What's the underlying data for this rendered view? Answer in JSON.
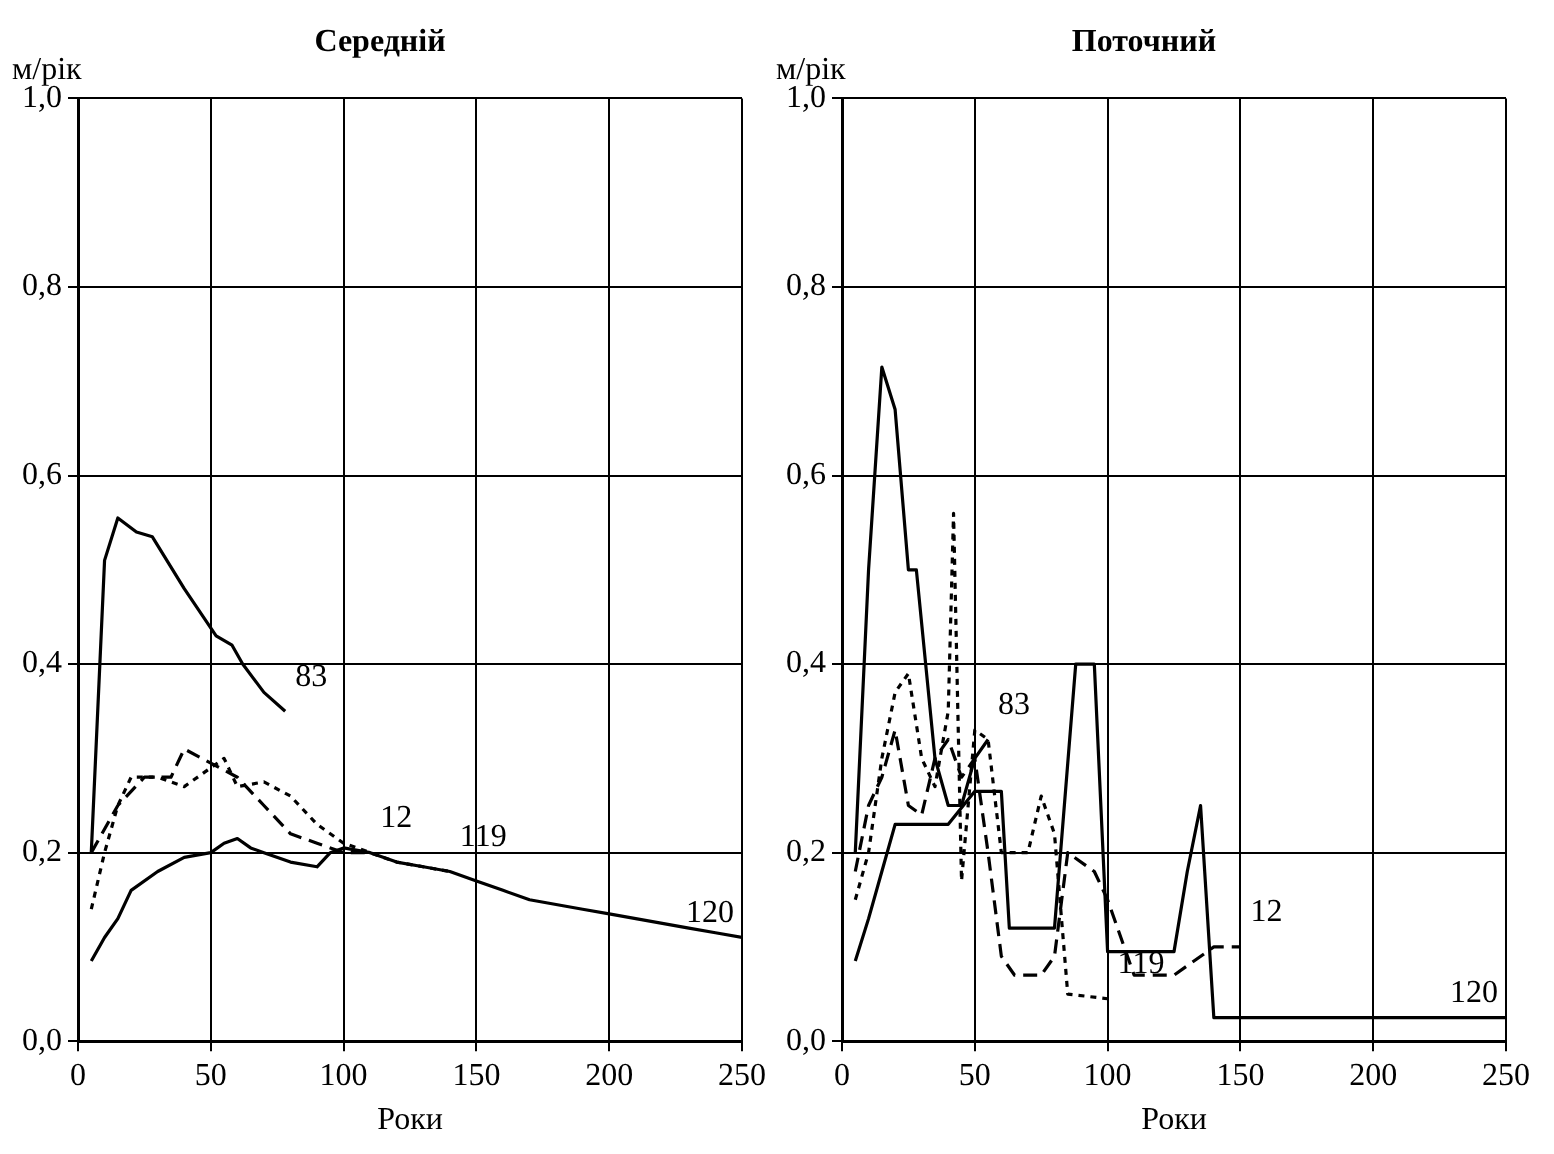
{
  "chart_data": [
    {
      "type": "line",
      "title": "Середній",
      "ylabel": "м/рік",
      "xlabel": "Роки",
      "xlim": [
        0,
        250
      ],
      "xticks": [
        0,
        50,
        100,
        150,
        200,
        250
      ],
      "ylim": [
        0,
        1
      ],
      "yticks": [
        {
          "value": 0,
          "label": "0,0"
        },
        {
          "value": 0.2,
          "label": "0,2"
        },
        {
          "value": 0.4,
          "label": "0,4"
        },
        {
          "value": 0.6,
          "label": "0,6"
        },
        {
          "value": 0.8,
          "label": "0,8"
        },
        {
          "value": 1,
          "label": "1,0"
        }
      ],
      "grid": true,
      "legend": false,
      "marker": "none",
      "series": [
        {
          "name": "83",
          "color": "#000000",
          "line_style": "solid",
          "x": [
            5,
            10,
            15,
            22,
            28,
            40,
            52,
            58,
            62,
            70,
            78
          ],
          "values": [
            0.2,
            0.51,
            0.555,
            0.54,
            0.535,
            0.48,
            0.43,
            0.42,
            0.4,
            0.37,
            0.35
          ]
        },
        {
          "name": "12",
          "color": "#000000",
          "line_style": "dashed",
          "x": [
            5,
            15,
            25,
            35,
            40,
            50,
            60,
            70,
            80,
            90,
            100,
            110
          ],
          "values": [
            0.2,
            0.25,
            0.28,
            0.28,
            0.31,
            0.295,
            0.28,
            0.25,
            0.22,
            0.21,
            0.2,
            0.2
          ]
        },
        {
          "name": "119",
          "color": "#000000",
          "line_style": "dotted",
          "x": [
            5,
            10,
            15,
            20,
            30,
            40,
            50,
            55,
            60,
            70,
            80,
            90,
            100,
            120,
            140
          ],
          "values": [
            0.14,
            0.2,
            0.25,
            0.28,
            0.28,
            0.27,
            0.29,
            0.3,
            0.27,
            0.275,
            0.26,
            0.23,
            0.21,
            0.19,
            0.18
          ]
        },
        {
          "name": "120",
          "color": "#000000",
          "line_style": "solid",
          "x": [
            5,
            10,
            15,
            20,
            30,
            40,
            50,
            55,
            60,
            65,
            70,
            80,
            90,
            95,
            100,
            110,
            120,
            130,
            140,
            150,
            160,
            170,
            180,
            190,
            200,
            210,
            220,
            230,
            240,
            250
          ],
          "values": [
            0.085,
            0.11,
            0.13,
            0.16,
            0.18,
            0.195,
            0.2,
            0.21,
            0.215,
            0.205,
            0.2,
            0.19,
            0.185,
            0.2,
            0.205,
            0.2,
            0.19,
            0.185,
            0.18,
            0.17,
            0.16,
            0.15,
            0.145,
            0.14,
            0.135,
            0.13,
            0.125,
            0.12,
            0.115,
            0.11
          ]
        }
      ]
    },
    {
      "type": "line",
      "title": "Поточний",
      "ylabel": "м/рік",
      "xlabel": "Роки",
      "xlim": [
        0,
        250
      ],
      "xticks": [
        0,
        50,
        100,
        150,
        200,
        250
      ],
      "ylim": [
        0,
        1
      ],
      "yticks": [
        {
          "value": 0,
          "label": "0,0"
        },
        {
          "value": 0.2,
          "label": "0,2"
        },
        {
          "value": 0.4,
          "label": "0,4"
        },
        {
          "value": 0.6,
          "label": "0,6"
        },
        {
          "value": 0.8,
          "label": "0,8"
        },
        {
          "value": 1,
          "label": "1,0"
        }
      ],
      "grid": true,
      "legend": false,
      "marker": "none",
      "series": [
        {
          "name": "83",
          "color": "#000000",
          "line_style": "solid",
          "x": [
            5,
            10,
            15,
            20,
            25,
            28,
            35,
            40,
            45,
            50,
            55
          ],
          "values": [
            0.2,
            0.5,
            0.715,
            0.67,
            0.5,
            0.5,
            0.3,
            0.25,
            0.25,
            0.3,
            0.32
          ]
        },
        {
          "name": "12",
          "color": "#000000",
          "line_style": "dashed",
          "x": [
            5,
            10,
            15,
            20,
            25,
            30,
            35,
            40,
            45,
            50,
            55,
            60,
            65,
            75,
            80,
            85,
            95,
            100,
            110,
            125,
            130,
            140,
            150
          ],
          "values": [
            0.18,
            0.25,
            0.28,
            0.33,
            0.25,
            0.24,
            0.3,
            0.32,
            0.28,
            0.3,
            0.2,
            0.09,
            0.07,
            0.07,
            0.09,
            0.2,
            0.18,
            0.15,
            0.07,
            0.07,
            0.08,
            0.1,
            0.1
          ]
        },
        {
          "name": "119",
          "color": "#000000",
          "line_style": "dotted",
          "x": [
            5,
            10,
            15,
            20,
            25,
            30,
            35,
            40,
            42,
            45,
            50,
            55,
            60,
            70,
            75,
            80,
            85,
            100
          ],
          "values": [
            0.15,
            0.2,
            0.3,
            0.37,
            0.39,
            0.3,
            0.27,
            0.35,
            0.56,
            0.17,
            0.33,
            0.32,
            0.2,
            0.2,
            0.26,
            0.22,
            0.05,
            0.045
          ]
        },
        {
          "name": "120",
          "color": "#000000",
          "line_style": "solid",
          "x": [
            5,
            10,
            15,
            20,
            40,
            50,
            60,
            63,
            80,
            88,
            95,
            100,
            125,
            130,
            135,
            140,
            250
          ],
          "values": [
            0.085,
            0.13,
            0.18,
            0.23,
            0.23,
            0.265,
            0.265,
            0.12,
            0.12,
            0.4,
            0.4,
            0.095,
            0.095,
            0.18,
            0.25,
            0.025,
            0.025
          ]
        }
      ]
    }
  ]
}
